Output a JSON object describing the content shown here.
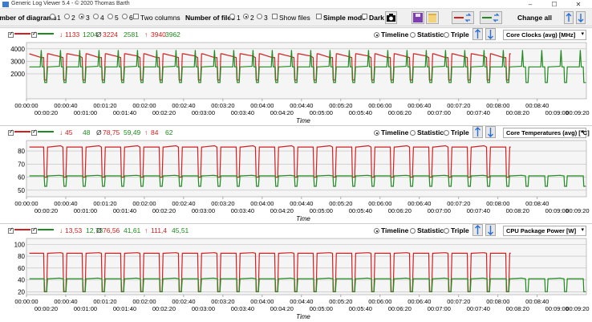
{
  "window": {
    "title": "Generic Log Viewer 5.4 - © 2020 Thomas Barth",
    "minimize": "–",
    "maximize": "☐",
    "close": "✕"
  },
  "toolbar": {
    "num_diagrams_label": "Number of diagrams",
    "diagram_options": [
      "1",
      "2",
      "3",
      "4",
      "5",
      "6"
    ],
    "diagram_selected": "3",
    "two_columns_label": "Two columns",
    "num_files_label": "Number of files",
    "file_options": [
      "1",
      "2",
      "3"
    ],
    "files_selected": "2",
    "show_files_label": "Show files",
    "simple_mode_label": "Simple mode",
    "dark_label": "Dark",
    "change_all_label": "Change all"
  },
  "time_ticks": {
    "row1": [
      "00:00:00",
      "00:00:40",
      "00:01:20",
      "00:02:00",
      "00:02:40",
      "00:03:20",
      "00:04:00",
      "00:04:40",
      "00:05:20",
      "00:06:00",
      "00:06:40",
      "00:07:20",
      "00:08:00",
      "00:08:40"
    ],
    "row2": [
      "00:00:20",
      "00:01:00",
      "00:01:40",
      "00:02:20",
      "00:03:00",
      "00:03:40",
      "00:04:20",
      "00:05:00",
      "00:05:40",
      "00:06:20",
      "00:07:00",
      "00:07:40",
      "00:08:20",
      "00:09:00",
      "00:09:20"
    ]
  },
  "panels": [
    {
      "stats": {
        "min_red": "1133",
        "min_green": "1204",
        "avg_red": "3224",
        "avg_green": "2581",
        "max_red": "3940",
        "max_green": "3962"
      },
      "metric": "Core Clocks (avg) [MHz]",
      "view_options": [
        "Timeline",
        "Statistic",
        "Triple"
      ],
      "view_selected": "Timeline",
      "xlabel": "Time",
      "chart_data": {
        "type": "line",
        "ylim": [
          0,
          4500
        ],
        "yticks": [
          2000,
          3000,
          4000
        ],
        "series": [
          {
            "color": "#d22020",
            "baseline": 3300,
            "load_value": 3600,
            "drop": 1500,
            "end": 0.88
          },
          {
            "color": "#1f8a1f",
            "baseline": 2550,
            "spike": 3900,
            "dip": 1300,
            "end": 1.0
          }
        ]
      }
    },
    {
      "stats": {
        "min_red": "45",
        "min_green": "48",
        "avg_red": "78,75",
        "avg_green": "59,49",
        "max_red": "84",
        "max_green": "62"
      },
      "metric": "Core Temperatures (avg) [°C]",
      "view_options": [
        "Timeline",
        "Statistic",
        "Triple"
      ],
      "view_selected": "Timeline",
      "xlabel": "Time",
      "chart_data": {
        "type": "line",
        "ylim": [
          45,
          88
        ],
        "yticks": [
          50,
          60,
          70,
          80
        ],
        "series": [
          {
            "color": "#d22020",
            "baseline": 83,
            "dip": 60,
            "end": 0.88
          },
          {
            "color": "#1f8a1f",
            "baseline": 61,
            "dip": 53,
            "end": 1.0
          }
        ]
      }
    },
    {
      "stats": {
        "min_red": "13,53",
        "min_green": "12,73",
        "avg_red": "76,56",
        "avg_green": "41,61",
        "max_red": "111,4",
        "max_green": "45,51"
      },
      "metric": "CPU Package Power [W]",
      "view_options": [
        "Timeline",
        "Statistic",
        "Triple"
      ],
      "view_selected": "Timeline",
      "xlabel": "Time",
      "chart_data": {
        "type": "line",
        "ylim": [
          15,
          110
        ],
        "yticks": [
          20,
          40,
          60,
          80,
          100
        ],
        "series": [
          {
            "color": "#d22020",
            "baseline": 85,
            "dip": 20,
            "end": 0.88
          },
          {
            "color": "#1f8a1f",
            "baseline": 42,
            "dip": 20,
            "end": 1.0
          }
        ]
      }
    }
  ]
}
